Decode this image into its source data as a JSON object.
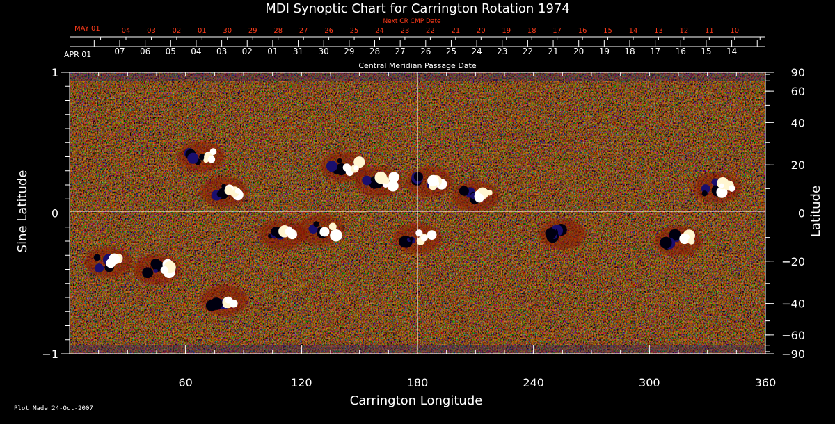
{
  "chart_data": {
    "type": "heatmap",
    "title": "MDI Synoptic Chart for Carrington Rotation 1974",
    "xlabel": "Carrington Longitude",
    "ylabel_left": "Sine Latitude",
    "ylabel_right": "Latitude",
    "xlim": [
      0,
      360
    ],
    "ylim": [
      -1,
      1
    ],
    "x_ticks": [
      60,
      120,
      180,
      240,
      300,
      360
    ],
    "y_ticks_left": [
      {
        "value": 1,
        "label": "1"
      },
      {
        "value": 0,
        "label": "0"
      },
      {
        "value": -1,
        "label": "−1"
      }
    ],
    "y_ticks_right_deg": [
      90,
      60,
      40,
      20,
      0,
      -20,
      -40,
      -60,
      -90
    ],
    "y_ticks_right_labels": [
      "90",
      "60",
      "40",
      "20",
      "0",
      "−20",
      "−40",
      "−60",
      "−90"
    ],
    "cmp_axis": {
      "title": "Central Meridian Passage Date",
      "start_label": "APR 01",
      "labels": [
        "07",
        "06",
        "05",
        "04",
        "03",
        "02",
        "01",
        "31",
        "30",
        "29",
        "28",
        "27",
        "26",
        "25",
        "24",
        "23",
        "22",
        "21",
        "20",
        "19",
        "18",
        "17",
        "16",
        "15",
        "14"
      ]
    },
    "next_cmp_axis": {
      "title": "Next CR CMP Date",
      "start_label": "MAY 01",
      "labels": [
        "04",
        "03",
        "02",
        "01",
        "30",
        "29",
        "28",
        "27",
        "26",
        "25",
        "24",
        "23",
        "22",
        "21",
        "20",
        "19",
        "18",
        "17",
        "16",
        "15",
        "14",
        "13",
        "12",
        "11",
        "10"
      ]
    },
    "active_regions": [
      {
        "lon": 68,
        "sinlat": 0.4,
        "polarity": "bipolar"
      },
      {
        "lon": 80,
        "sinlat": 0.15,
        "polarity": "bipolar"
      },
      {
        "lon": 142,
        "sinlat": 0.33,
        "polarity": "bipolar"
      },
      {
        "lon": 160,
        "sinlat": 0.22,
        "polarity": "bipolar"
      },
      {
        "lon": 186,
        "sinlat": 0.22,
        "polarity": "bipolar"
      },
      {
        "lon": 210,
        "sinlat": 0.12,
        "polarity": "bipolar"
      },
      {
        "lon": 335,
        "sinlat": 0.18,
        "polarity": "bipolar"
      },
      {
        "lon": 110,
        "sinlat": -0.15,
        "polarity": "bipolar"
      },
      {
        "lon": 130,
        "sinlat": -0.12,
        "polarity": "bipolar"
      },
      {
        "lon": 180,
        "sinlat": -0.18,
        "polarity": "bipolar"
      },
      {
        "lon": 315,
        "sinlat": -0.2,
        "polarity": "bipolar"
      },
      {
        "lon": 20,
        "sinlat": -0.35,
        "polarity": "bipolar"
      },
      {
        "lon": 45,
        "sinlat": -0.4,
        "polarity": "bipolar"
      },
      {
        "lon": 80,
        "sinlat": -0.62,
        "polarity": "bipolar"
      },
      {
        "lon": 255,
        "sinlat": -0.15,
        "polarity": "negative"
      }
    ],
    "colorscale": [
      "#000000",
      "#1a1070",
      "#b32000",
      "#ff4a00",
      "#ff9a30",
      "#ffffff"
    ],
    "grid": "lines at longitude 180 and latitude 0",
    "footer": "Plot Made 24-Oct-2007"
  },
  "colors": {
    "background": "#000000",
    "text": "#ffffff",
    "next_cmp": "#ff3b1a",
    "field_base": "#ff4a00"
  }
}
